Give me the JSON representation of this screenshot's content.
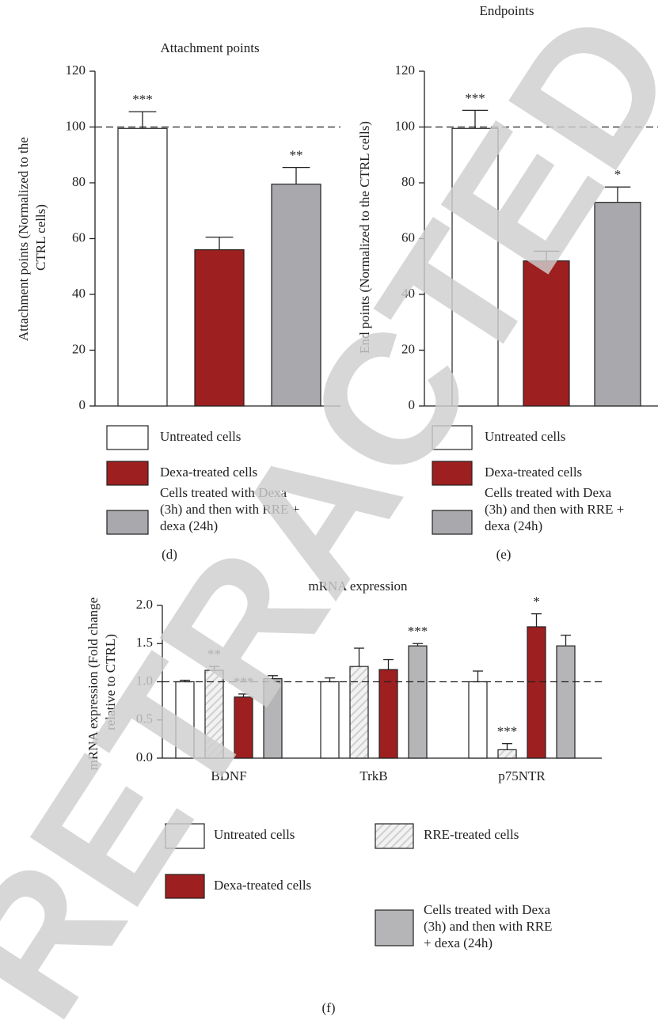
{
  "watermark": "RETRACTED",
  "chart_data": [
    {
      "type": "bar",
      "title": "Attachment points",
      "ylabel": "Attachment points (Normalized to the CTRL cells)",
      "panel_label": "(d)",
      "categories": [
        null
      ],
      "series": [
        {
          "name": "Untreated cells",
          "color": "#ffffff",
          "values": [
            99.5
          ],
          "errors": [
            6
          ]
        },
        {
          "name": "Dexa-treated cells",
          "color": "#9e1f1f",
          "values": [
            56
          ],
          "errors": [
            4.5
          ]
        },
        {
          "name": "Cells treated with Dexa (3h) and then with RRE + dexa (24h)",
          "color": "#a8a8ad",
          "values": [
            79.5
          ],
          "errors": [
            6
          ]
        }
      ],
      "annotations": [
        {
          "series": 0,
          "index": 0,
          "text": "***"
        },
        {
          "series": 2,
          "index": 0,
          "text": "**"
        }
      ],
      "reference_line": 100,
      "ylim": [
        0,
        120
      ],
      "yticks": [
        0,
        20,
        40,
        60,
        80,
        100,
        120
      ]
    },
    {
      "type": "bar",
      "title": "Endpoints",
      "ylabel": "End points (Normalized to the CTRL cells)",
      "panel_label": "(e)",
      "categories": [
        null
      ],
      "series": [
        {
          "name": "Untreated cells",
          "color": "#ffffff",
          "values": [
            99.5
          ],
          "errors": [
            6.5
          ]
        },
        {
          "name": "Dexa-treated cells",
          "color": "#9e1f1f",
          "values": [
            52
          ],
          "errors": [
            3.5
          ]
        },
        {
          "name": "Cells treated with Dexa (3h) and then with RRE + dexa (24h)",
          "color": "#a8a8ad",
          "values": [
            73
          ],
          "errors": [
            5.5
          ]
        }
      ],
      "annotations": [
        {
          "series": 0,
          "index": 0,
          "text": "***"
        },
        {
          "series": 2,
          "index": 0,
          "text": "*"
        }
      ],
      "reference_line": 100,
      "ylim": [
        0,
        120
      ],
      "yticks": [
        0,
        20,
        40,
        60,
        80,
        100,
        120
      ]
    },
    {
      "type": "bar",
      "title": "mRNA expression",
      "ylabel": "mRNA expression (Fold change relative to CTRL)",
      "panel_label": "(f)",
      "categories": [
        "BDNF",
        "TrkB",
        "p75NTR"
      ],
      "series": [
        {
          "name": "Untreated cells",
          "color": "#ffffff",
          "values": [
            1.0,
            1.0,
            1.0
          ],
          "errors": [
            0.02,
            0.05,
            0.14
          ]
        },
        {
          "name": "RRE-treated cells",
          "color": "#d9d9d9",
          "pattern": "hatch",
          "values": [
            1.15,
            1.2,
            0.11
          ],
          "errors": [
            0.05,
            0.24,
            0.08
          ]
        },
        {
          "name": "Dexa-treated cells",
          "color": "#9e1f1f",
          "values": [
            0.8,
            1.16,
            1.72
          ],
          "errors": [
            0.04,
            0.13,
            0.17
          ]
        },
        {
          "name": "Cells treated with Dexa (3h) and then with RRE + dexa (24h)",
          "color": "#b5b5b8",
          "values": [
            1.04,
            1.47,
            1.47
          ],
          "errors": [
            0.04,
            0.03,
            0.14
          ]
        }
      ],
      "annotations": [
        {
          "series": 1,
          "index": 0,
          "text": "**"
        },
        {
          "series": 2,
          "index": 0,
          "text": "***"
        },
        {
          "series": 3,
          "index": 1,
          "text": "***"
        },
        {
          "series": 1,
          "index": 2,
          "text": "***"
        },
        {
          "series": 2,
          "index": 2,
          "text": "*"
        }
      ],
      "reference_line": 1,
      "ylim": [
        0,
        2
      ],
      "yticks": [
        {
          "value": 0,
          "label": "0.0"
        },
        0.5,
        {
          "value": 1,
          "label": "1.0"
        },
        1.5,
        {
          "value": 2,
          "label": "2.0"
        }
      ]
    }
  ]
}
